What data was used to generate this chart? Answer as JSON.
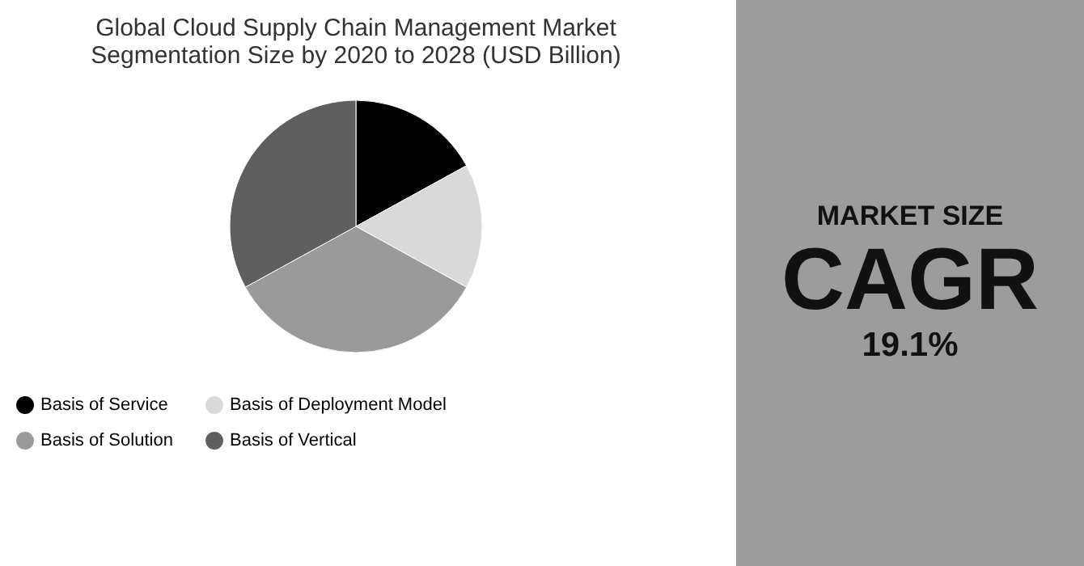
{
  "chart_data": [
    {
      "type": "pie",
      "title": "Global Cloud Supply Chain Management Market Segmentation Size by 2020 to 2028 (USD Billion)",
      "categories": [
        "Basis of Service",
        "Basis of Deployment Model",
        "Basis of Solution",
        "Basis of Vertical"
      ],
      "values": [
        17,
        16,
        34,
        33
      ],
      "colors": [
        "#000000",
        "#d9d9d9",
        "#9a9a9a",
        "#5f5f5f"
      ],
      "legend": "bottom"
    },
    {
      "type": "other",
      "annotations": [
        "MARKET SIZE",
        "CAGR",
        "19.1%"
      ]
    }
  ]
}
